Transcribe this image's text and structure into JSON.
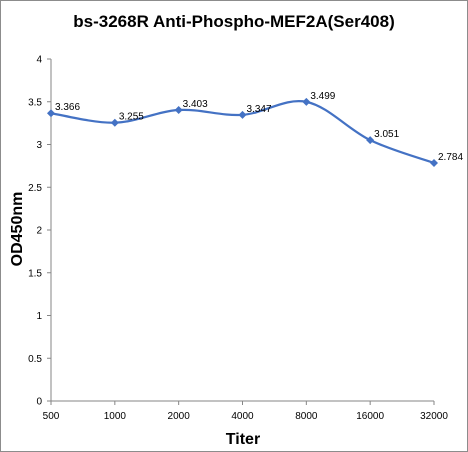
{
  "chart_data": {
    "type": "line",
    "title": "bs-3268R Anti-Phospho-MEF2A(Ser408)",
    "xlabel": "Titer",
    "ylabel": "OD450nm",
    "categories": [
      "500",
      "1000",
      "2000",
      "4000",
      "8000",
      "16000",
      "32000"
    ],
    "series": [
      {
        "values": [
          3.366,
          3.255,
          3.403,
          3.347,
          3.499,
          3.051,
          2.784
        ],
        "labels": [
          "3.366",
          "3.255",
          "3.403",
          "3.347",
          "3.499",
          "3.051",
          "2.784"
        ]
      }
    ],
    "yticks": [
      "0",
      "0.5",
      "1",
      "1.5",
      "2",
      "2.5",
      "3",
      "3.5",
      "4"
    ],
    "ylim": [
      0,
      4
    ],
    "grid": false,
    "legend": "none",
    "line_color": "#4472c4",
    "marker": "diamond"
  }
}
